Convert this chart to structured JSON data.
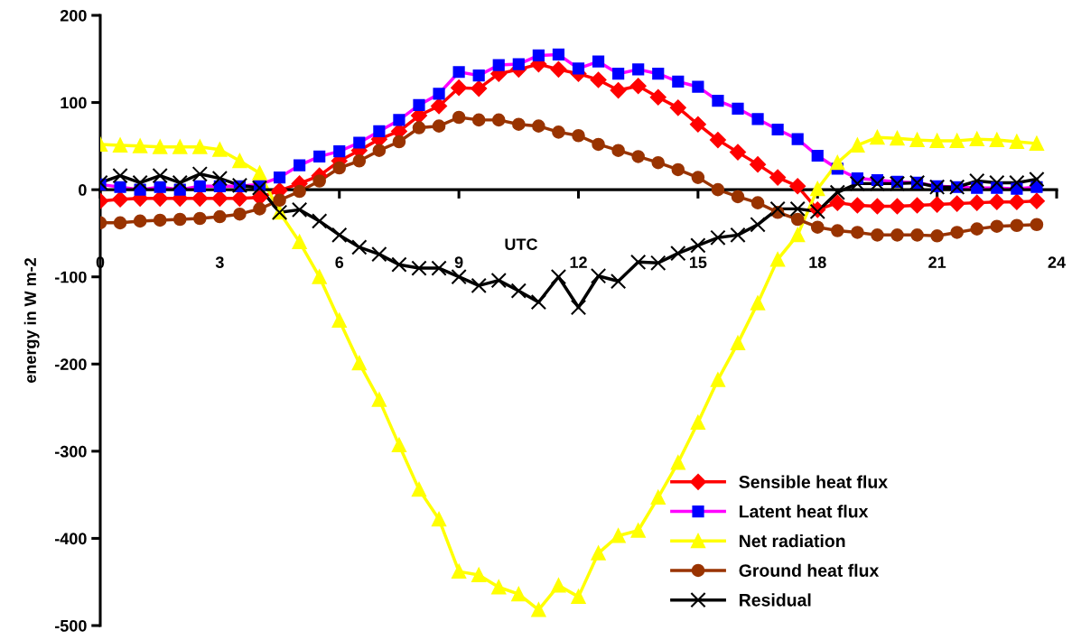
{
  "chart_data": {
    "type": "line",
    "xlabel": "UTC",
    "ylabel": "energy in W m-2",
    "x": [
      0,
      0.5,
      1,
      1.5,
      2,
      2.5,
      3,
      3.5,
      4,
      4.5,
      5,
      5.5,
      6,
      6.5,
      7,
      7.5,
      8,
      8.5,
      9,
      9.5,
      10,
      10.5,
      11,
      11.5,
      12,
      12.5,
      13,
      13.5,
      14,
      14.5,
      15,
      15.5,
      16,
      16.5,
      17,
      17.5,
      18,
      18.5,
      19,
      19.5,
      20,
      20.5,
      21,
      21.5,
      22,
      22.5,
      23,
      23.5
    ],
    "xlim": [
      0,
      24
    ],
    "xticks": [
      0,
      3,
      6,
      9,
      12,
      15,
      18,
      21,
      24
    ],
    "ylim": [
      -500,
      200
    ],
    "yticks": [
      -500,
      -400,
      -300,
      -200,
      -100,
      0,
      100,
      200
    ],
    "legend": "lower right",
    "series": [
      {
        "name": "Sensible heat flux",
        "color": "#ff0000",
        "marker": "diamond",
        "values": [
          -13,
          -11,
          -10,
          -10,
          -10,
          -10,
          -10,
          -10,
          -9,
          -1,
          7,
          16,
          33,
          45,
          58,
          67,
          85,
          96,
          117,
          116,
          133,
          138,
          144,
          138,
          133,
          126,
          114,
          119,
          106,
          94,
          75,
          57,
          43,
          29,
          14,
          4,
          -23,
          -15,
          -18,
          -19,
          -19,
          -18,
          -17,
          -16,
          -15,
          -14,
          -14,
          -13
        ]
      },
      {
        "name": "Latent heat flux",
        "color": "#ff00ff",
        "colors": [
          "#0000ff",
          "#0000ff",
          "#0000ff",
          "#0000ff",
          "#0000ff",
          "#0000ff",
          "#0000ff",
          "#0000ff",
          "#0000ff",
          "#0000ff",
          "#0000ff",
          "#0000ff",
          "#0000ff",
          "#0000ff",
          "#0000ff",
          "#0000ff",
          "#0000ff",
          "#0000ff",
          "#0000ff",
          "#0000ff",
          "#0000ff",
          "#0000ff",
          "#0000ff",
          "#0000ff",
          "#0000ff",
          "#0000ff",
          "#0000ff",
          "#0000ff",
          "#0000ff",
          "#0000ff",
          "#0000ff",
          "#0000ff",
          "#0000ff",
          "#0000ff",
          "#0000ff",
          "#0000ff",
          "#0000ff",
          "#0000ff",
          "#0000ff",
          "#0000ff",
          "#0000ff",
          "#0000ff",
          "#0000ff",
          "#0000ff",
          "#0000ff",
          "#0000ff",
          "#0000ff",
          "#0000ff"
        ],
        "marker": "square",
        "values": [
          6,
          3,
          0,
          3,
          0,
          4,
          4,
          4,
          6,
          14,
          28,
          38,
          44,
          54,
          67,
          80,
          97,
          110,
          135,
          131,
          143,
          144,
          154,
          155,
          139,
          147,
          133,
          138,
          133,
          124,
          118,
          102,
          93,
          81,
          69,
          58,
          39,
          24,
          13,
          11,
          9,
          8,
          4,
          3,
          2,
          2,
          1,
          3
        ]
      },
      {
        "name": "Net radiation",
        "color": "#ffff00",
        "marker": "triangle",
        "values": [
          52,
          51,
          50,
          49,
          49,
          49,
          46,
          33,
          19,
          -26,
          -60,
          -100,
          -150,
          -199,
          -241,
          -293,
          -344,
          -378,
          -438,
          -442,
          -456,
          -464,
          -482,
          -454,
          -467,
          -417,
          -397,
          -391,
          -353,
          -313,
          -267,
          -218,
          -176,
          -130,
          -80,
          -52,
          1,
          31,
          51,
          60,
          59,
          57,
          56,
          56,
          58,
          57,
          55,
          53
        ]
      },
      {
        "name": "Ground heat flux",
        "color": "#993300",
        "marker": "circle",
        "values": [
          -38,
          -38,
          -36,
          -35,
          -34,
          -33,
          -31,
          -28,
          -22,
          -12,
          -2,
          10,
          25,
          33,
          45,
          55,
          71,
          73,
          83,
          80,
          80,
          75,
          73,
          66,
          62,
          52,
          45,
          38,
          31,
          23,
          14,
          0,
          -8,
          -15,
          -26,
          -34,
          -43,
          -47,
          -49,
          -52,
          -52,
          -52,
          -53,
          -49,
          -45,
          -42,
          -41,
          -40
        ]
      },
      {
        "name": "Residual",
        "color": "#000000",
        "marker": "cross",
        "values": [
          8,
          16,
          8,
          16,
          8,
          18,
          13,
          5,
          2,
          -26,
          -23,
          -36,
          -52,
          -66,
          -74,
          -86,
          -90,
          -90,
          -100,
          -110,
          -104,
          -116,
          -129,
          -100,
          -135,
          -99,
          -105,
          -83,
          -84,
          -73,
          -64,
          -55,
          -52,
          -40,
          -22,
          -22,
          -25,
          -3,
          7,
          7,
          7,
          8,
          3,
          3,
          10,
          8,
          8,
          12
        ]
      }
    ]
  }
}
